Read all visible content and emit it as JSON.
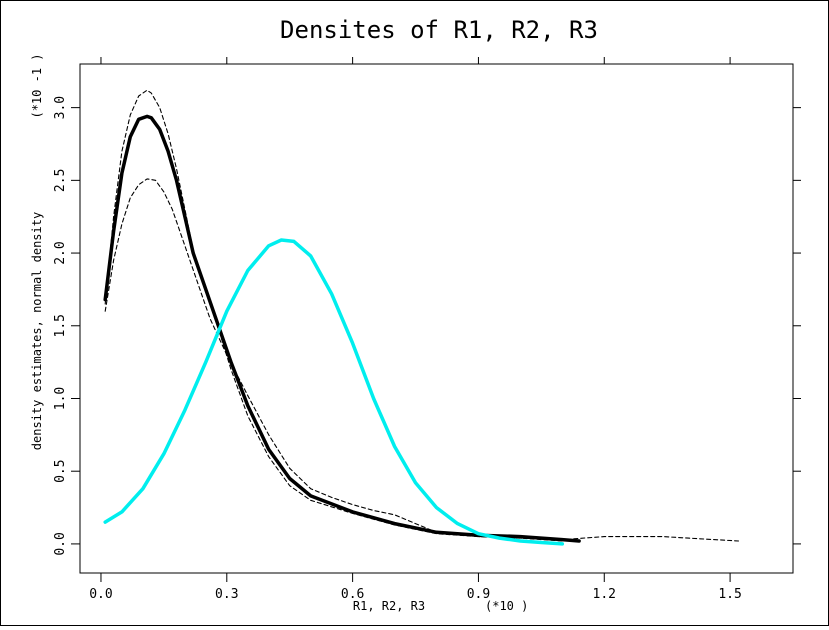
{
  "chart_data": {
    "type": "line",
    "title": "Densites of R1, R2, R3",
    "xlabel": "R1, R2, R3",
    "xlabel_unit": "(*10 )",
    "ylabel": "density estimates, normal density",
    "ylabel_unit": "(*10 -1 )",
    "xlim": [
      -0.05,
      1.65
    ],
    "ylim": [
      -0.2,
      3.3
    ],
    "xticks": [
      "0.0",
      "0.3",
      "0.6",
      "0.9",
      "1.2",
      "1.5"
    ],
    "yticks": [
      "0.0",
      "0.5",
      "1.0",
      "1.5",
      "2.0",
      "2.5",
      "3.0"
    ],
    "grid": false,
    "series": [
      {
        "style": "thick-solid",
        "color": "#000000",
        "x": [
          0.01,
          0.03,
          0.05,
          0.07,
          0.09,
          0.11,
          0.12,
          0.14,
          0.16,
          0.18,
          0.2,
          0.22,
          0.25,
          0.28,
          0.31,
          0.35,
          0.4,
          0.45,
          0.5,
          0.6,
          0.7,
          0.8,
          0.9,
          1.0,
          1.1,
          1.14
        ],
        "y": [
          1.68,
          2.15,
          2.55,
          2.8,
          2.92,
          2.94,
          2.93,
          2.85,
          2.7,
          2.5,
          2.25,
          2.0,
          1.75,
          1.5,
          1.25,
          0.95,
          0.65,
          0.45,
          0.33,
          0.22,
          0.14,
          0.08,
          0.06,
          0.05,
          0.03,
          0.02
        ]
      },
      {
        "style": "dashed",
        "color": "#000000",
        "x": [
          0.01,
          0.03,
          0.05,
          0.07,
          0.09,
          0.11,
          0.12,
          0.14,
          0.16,
          0.18,
          0.2,
          0.22,
          0.25,
          0.28,
          0.31,
          0.35,
          0.4,
          0.45,
          0.5,
          0.6,
          0.7,
          0.8,
          0.9,
          1.0,
          1.1
        ],
        "y": [
          1.65,
          2.25,
          2.7,
          2.95,
          3.08,
          3.12,
          3.1,
          3.0,
          2.82,
          2.58,
          2.3,
          2.02,
          1.75,
          1.48,
          1.2,
          0.88,
          0.6,
          0.4,
          0.3,
          0.21,
          0.13,
          0.07,
          0.05,
          0.04,
          0.02
        ]
      },
      {
        "style": "dashed",
        "color": "#000000",
        "x": [
          0.01,
          0.03,
          0.05,
          0.07,
          0.09,
          0.11,
          0.13,
          0.15,
          0.17,
          0.2,
          0.23,
          0.26,
          0.3,
          0.35,
          0.4,
          0.45,
          0.5,
          0.55,
          0.6,
          0.65,
          0.7,
          0.75,
          0.8,
          0.9,
          1.0,
          1.1,
          1.2,
          1.34,
          1.4,
          1.52
        ],
        "y": [
          1.6,
          1.95,
          2.2,
          2.38,
          2.47,
          2.51,
          2.5,
          2.42,
          2.3,
          2.05,
          1.8,
          1.55,
          1.3,
          1.02,
          0.75,
          0.52,
          0.38,
          0.32,
          0.27,
          0.23,
          0.2,
          0.14,
          0.08,
          0.05,
          0.04,
          0.03,
          0.05,
          0.05,
          0.04,
          0.02
        ]
      },
      {
        "style": "thick-solid",
        "color": "#00eeee",
        "x": [
          0.01,
          0.05,
          0.1,
          0.15,
          0.2,
          0.25,
          0.3,
          0.35,
          0.4,
          0.43,
          0.46,
          0.5,
          0.55,
          0.6,
          0.65,
          0.7,
          0.75,
          0.8,
          0.85,
          0.9,
          0.95,
          1.0,
          1.05,
          1.1
        ],
        "y": [
          0.15,
          0.22,
          0.38,
          0.62,
          0.92,
          1.25,
          1.6,
          1.88,
          2.05,
          2.09,
          2.08,
          1.98,
          1.72,
          1.38,
          1.0,
          0.67,
          0.42,
          0.25,
          0.14,
          0.07,
          0.04,
          0.02,
          0.01,
          0.0
        ]
      }
    ]
  }
}
